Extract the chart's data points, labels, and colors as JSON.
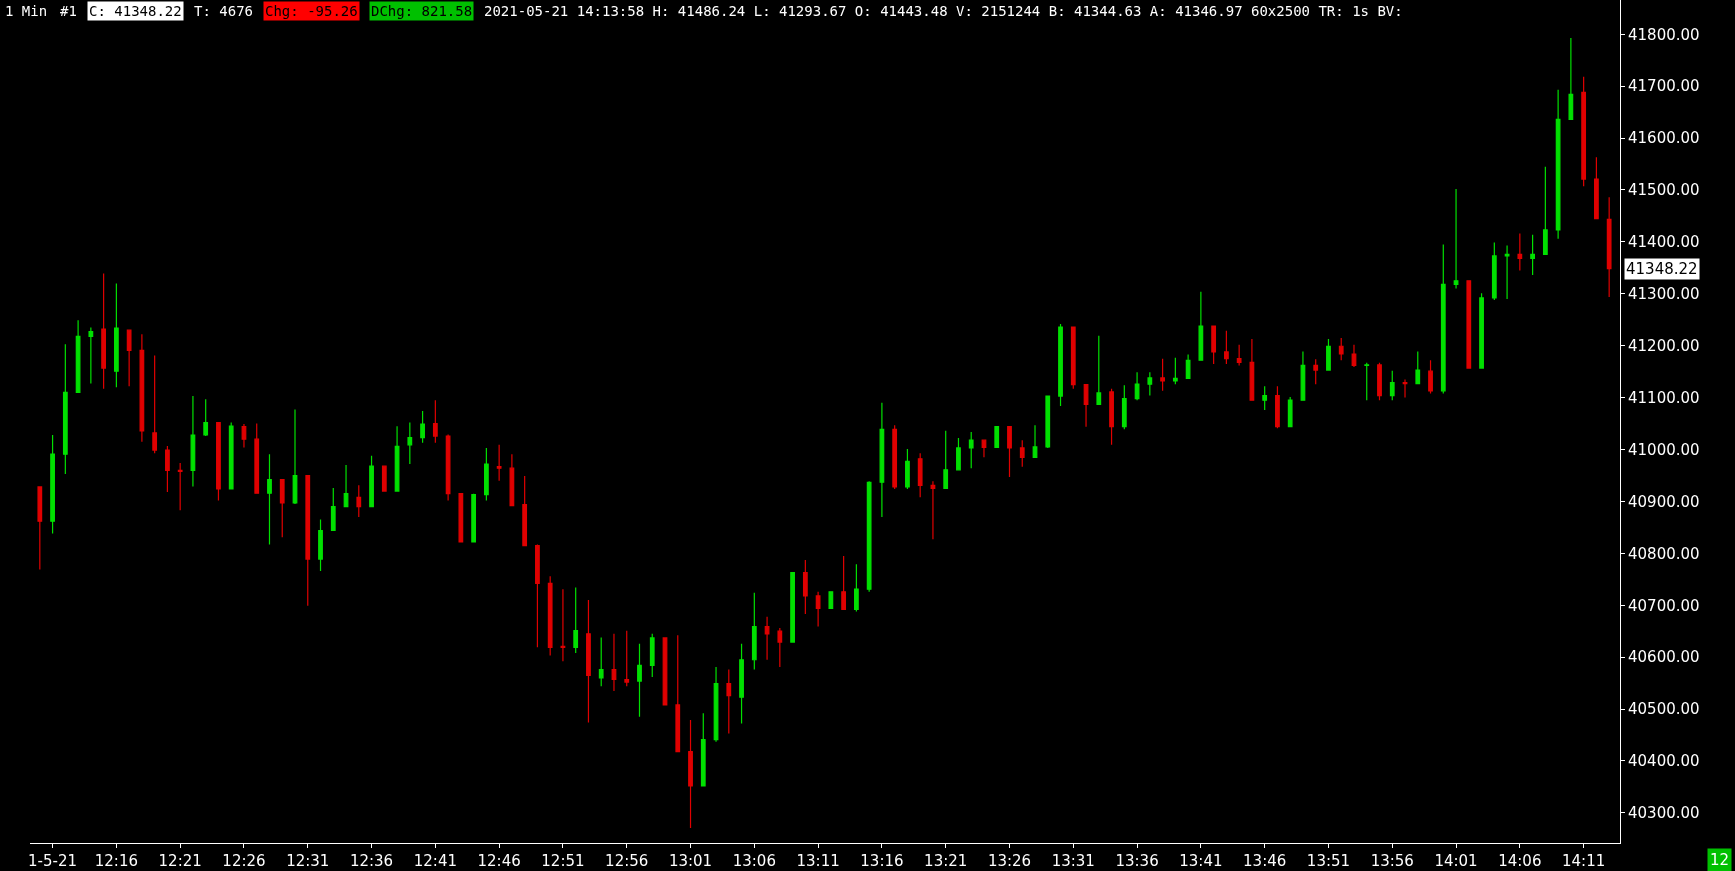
{
  "chart_data": {
    "type": "candlestick",
    "categories": [
      null,
      "1-5-21",
      null,
      null,
      null,
      null,
      "12:16",
      null,
      null,
      null,
      null,
      "12:21",
      null,
      null,
      null,
      null,
      "12:26",
      null,
      null,
      null,
      null,
      "12:31",
      null,
      null,
      null,
      null,
      "12:36",
      null,
      null,
      null,
      null,
      "12:41",
      null,
      null,
      null,
      null,
      "12:46",
      null,
      null,
      null,
      null,
      "12:51",
      null,
      null,
      null,
      null,
      "12:56",
      null,
      null,
      null,
      null,
      "13:01",
      null,
      null,
      null,
      null,
      "13:06",
      null,
      null,
      null,
      null,
      "13:11",
      null,
      null,
      null,
      null,
      "13:16",
      null,
      null,
      null,
      null,
      "13:21",
      null,
      null,
      null,
      null,
      "13:26",
      null,
      null,
      null,
      null,
      "13:31",
      null,
      null,
      null,
      null,
      "13:36",
      null,
      null,
      null,
      null,
      "13:41",
      null,
      null,
      null,
      null,
      "13:46",
      null,
      null,
      null,
      null,
      "13:51",
      null,
      null,
      null,
      null,
      "13:56",
      null,
      null,
      null,
      null,
      "14:01",
      null,
      null,
      null,
      null,
      "14:06",
      null,
      null,
      null,
      null,
      "14:11",
      null,
      null
    ],
    "ohlc": [
      [
        40928,
        40928,
        40769,
        40862
      ],
      [
        40862,
        41028,
        40838,
        40991
      ],
      [
        40991,
        41203,
        40953,
        41110
      ],
      [
        41110,
        41249,
        41110,
        41218
      ],
      [
        41218,
        41235,
        41127,
        41227
      ],
      [
        41232,
        41339,
        41117,
        41157
      ],
      [
        41151,
        41320,
        41120,
        41234
      ],
      [
        41230,
        41230,
        41122,
        41191
      ],
      [
        41191,
        41222,
        41015,
        41036
      ],
      [
        41032,
        41181,
        40993,
        40999
      ],
      [
        40999,
        41007,
        40918,
        40960
      ],
      [
        40960,
        40974,
        40883,
        40958
      ],
      [
        40960,
        41103,
        40929,
        41028
      ],
      [
        41028,
        41097,
        41026,
        41052
      ],
      [
        41052,
        41052,
        40902,
        40924
      ],
      [
        40924,
        41052,
        40924,
        41045
      ],
      [
        41044,
        41049,
        41004,
        41020
      ],
      [
        41020,
        41050,
        40916,
        40916
      ],
      [
        40916,
        40991,
        40817,
        40942
      ],
      [
        40942,
        40942,
        40831,
        40897
      ],
      [
        40897,
        41077,
        40895,
        40950
      ],
      [
        40950,
        40950,
        40699,
        40789
      ],
      [
        40789,
        40865,
        40766,
        40844
      ],
      [
        40844,
        40926,
        40844,
        40890
      ],
      [
        40890,
        40970,
        40890,
        40915
      ],
      [
        40908,
        40931,
        40870,
        40890
      ],
      [
        40890,
        40988,
        40890,
        40968
      ],
      [
        40968,
        40968,
        40919,
        40920
      ],
      [
        40920,
        41045,
        40919,
        41006
      ],
      [
        41009,
        41052,
        40972,
        41023
      ],
      [
        41023,
        41074,
        41013,
        41049
      ],
      [
        41050,
        41095,
        41013,
        41026
      ],
      [
        41026,
        41029,
        40902,
        40915
      ],
      [
        40915,
        40915,
        40821,
        40822
      ],
      [
        40822,
        40915,
        40821,
        40913
      ],
      [
        40913,
        41003,
        40902,
        40972
      ],
      [
        40967,
        41009,
        40940,
        40964
      ],
      [
        40964,
        40991,
        40892,
        40892
      ],
      [
        40894,
        40949,
        40815,
        40815
      ],
      [
        40815,
        40817,
        40619,
        40742
      ],
      [
        40742,
        40756,
        40603,
        40619
      ],
      [
        40621,
        40731,
        40592,
        40619
      ],
      [
        40619,
        40734,
        40608,
        40651
      ],
      [
        40645,
        40710,
        40474,
        40565
      ],
      [
        40560,
        40638,
        40544,
        40576
      ],
      [
        40576,
        40645,
        40535,
        40557
      ],
      [
        40557,
        40651,
        40544,
        40552
      ],
      [
        40554,
        40626,
        40485,
        40584
      ],
      [
        40584,
        40645,
        40562,
        40637
      ],
      [
        40637,
        40637,
        40508,
        40508
      ],
      [
        40508,
        40642,
        40418,
        40418
      ],
      [
        40418,
        40479,
        40271,
        40352
      ],
      [
        40352,
        40492,
        40352,
        40441
      ],
      [
        40441,
        40581,
        40437,
        40549
      ],
      [
        40549,
        40576,
        40453,
        40526
      ],
      [
        40523,
        40626,
        40472,
        40595
      ],
      [
        40595,
        40724,
        40576,
        40659
      ],
      [
        40659,
        40678,
        40595,
        40645
      ],
      [
        40650,
        40656,
        40581,
        40629
      ],
      [
        40629,
        40763,
        40629,
        40763
      ],
      [
        40763,
        40787,
        40683,
        40718
      ],
      [
        40718,
        40726,
        40659,
        40694
      ],
      [
        40694,
        40726,
        40694,
        40726
      ],
      [
        40726,
        40795,
        40692,
        40692
      ],
      [
        40692,
        40779,
        40688,
        40731
      ],
      [
        40731,
        40939,
        40726,
        40937
      ],
      [
        40937,
        41090,
        40870,
        41039
      ],
      [
        41039,
        41047,
        40924,
        40928
      ],
      [
        40928,
        41001,
        40924,
        40977
      ],
      [
        40982,
        40993,
        40908,
        40931
      ],
      [
        40931,
        40939,
        40827,
        40925
      ],
      [
        40925,
        41036,
        40924,
        40961
      ],
      [
        40961,
        41022,
        40961,
        41003
      ],
      [
        41003,
        41034,
        40964,
        41018
      ],
      [
        41018,
        41018,
        40985,
        41004
      ],
      [
        41004,
        41044,
        41004,
        41044
      ],
      [
        41044,
        41044,
        40947,
        41003
      ],
      [
        41003,
        41018,
        40967,
        40985
      ],
      [
        40985,
        41047,
        40985,
        41005
      ],
      [
        41005,
        41103,
        41003,
        41103
      ],
      [
        41103,
        41242,
        41084,
        41236
      ],
      [
        41236,
        41236,
        41117,
        41125
      ],
      [
        41125,
        41125,
        41044,
        41087
      ],
      [
        41087,
        41219,
        41087,
        41109
      ],
      [
        41111,
        41117,
        41009,
        41044
      ],
      [
        41044,
        41124,
        41039,
        41098
      ],
      [
        41098,
        41149,
        41095,
        41126
      ],
      [
        41126,
        41149,
        41104,
        41138
      ],
      [
        41138,
        41175,
        41113,
        41132
      ],
      [
        41132,
        41177,
        41126,
        41137
      ],
      [
        41137,
        41183,
        41137,
        41172
      ],
      [
        41172,
        41304,
        41172,
        41238
      ],
      [
        41238,
        41238,
        41165,
        41188
      ],
      [
        41188,
        41229,
        41165,
        41175
      ],
      [
        41175,
        41202,
        41162,
        41168
      ],
      [
        41168,
        41213,
        41095,
        41095
      ],
      [
        41095,
        41122,
        41076,
        41104
      ],
      [
        41104,
        41122,
        41041,
        41044
      ],
      [
        41044,
        41101,
        41044,
        41095
      ],
      [
        41095,
        41189,
        41095,
        41162
      ],
      [
        41162,
        41174,
        41126,
        41153
      ],
      [
        41153,
        41213,
        41153,
        41199
      ],
      [
        41199,
        41215,
        41172,
        41184
      ],
      [
        41184,
        41202,
        41159,
        41162
      ],
      [
        41162,
        41167,
        41095,
        41163
      ],
      [
        41163,
        41167,
        41095,
        41104
      ],
      [
        41104,
        41152,
        41095,
        41129
      ],
      [
        41129,
        41135,
        41100,
        41127
      ],
      [
        41127,
        41189,
        41127,
        41153
      ],
      [
        41151,
        41172,
        41108,
        41113
      ],
      [
        41113,
        41395,
        41108,
        41318
      ],
      [
        41318,
        41502,
        41310,
        41325
      ],
      [
        41325,
        41325,
        41156,
        41157
      ],
      [
        41157,
        41301,
        41156,
        41292
      ],
      [
        41292,
        41399,
        41288,
        41373
      ],
      [
        41373,
        41393,
        41290,
        41376
      ],
      [
        41376,
        41416,
        41345,
        41368
      ],
      [
        41368,
        41414,
        41336,
        41376
      ],
      [
        41376,
        41545,
        41376,
        41423
      ],
      [
        41423,
        41693,
        41406,
        41636
      ],
      [
        41636,
        41793,
        41636,
        41684
      ],
      [
        41688,
        41718,
        41507,
        41521
      ],
      [
        41521,
        41563,
        41445,
        41445
      ],
      [
        41443.48,
        41486.24,
        41293.67,
        41348.22
      ]
    ],
    "colors": [
      "#e00000",
      "#00e000",
      "#00e000",
      "#00e000",
      "#00e000",
      "#e00000",
      "#00e000",
      "#e00000",
      "#e00000",
      "#e00000",
      "#e00000",
      "#e00000",
      "#00e000",
      "#00e000",
      "#e00000",
      "#00e000",
      "#e00000",
      "#e00000",
      "#00e000",
      "#e00000",
      "#00e000",
      "#e00000",
      "#00e000",
      "#00e000",
      "#00e000",
      "#e00000",
      "#00e000",
      "#e00000",
      "#00e000",
      "#00e000",
      "#00e000",
      "#e00000",
      "#e00000",
      "#e00000",
      "#00e000",
      "#00e000",
      "#e00000",
      "#e00000",
      "#e00000",
      "#e00000",
      "#e00000",
      "#e00000",
      "#00e000",
      "#e00000",
      "#00e000",
      "#e00000",
      "#e00000",
      "#00e000",
      "#00e000",
      "#e00000",
      "#e00000",
      "#e00000",
      "#00e000",
      "#00e000",
      "#e00000",
      "#00e000",
      "#00e000",
      "#e00000",
      "#e00000",
      "#00e000",
      "#e00000",
      "#e00000",
      "#00e000",
      "#e00000",
      "#00e000",
      "#00e000",
      "#00e000",
      "#e00000",
      "#00e000",
      "#e00000",
      "#e00000",
      "#00e000",
      "#00e000",
      "#00e000",
      "#e00000",
      "#00e000",
      "#e00000",
      "#e00000",
      "#00e000",
      "#00e000",
      "#00e000",
      "#e00000",
      "#e00000",
      "#00e000",
      "#e00000",
      "#00e000",
      "#00e000",
      "#00e000",
      "#e00000",
      "#00e000",
      "#00e000",
      "#00e000",
      "#e00000",
      "#e00000",
      "#e00000",
      "#e00000",
      "#00e000",
      "#e00000",
      "#00e000",
      "#00e000",
      "#e00000",
      "#00e000",
      "#e00000",
      "#e00000",
      "#00e000",
      "#e00000",
      "#00e000",
      "#e00000",
      "#00e000",
      "#e00000",
      "#00e000",
      "#00e000",
      "#e00000",
      "#00e000",
      "#00e000",
      "#00e000",
      "#e00000",
      "#00e000",
      "#00e000",
      "#00e000",
      "#00e000",
      "#e00000",
      "#e00000",
      "#e00000"
    ],
    "ylim": [
      40242,
      41866
    ],
    "yticks": [
      {
        "value": 40300,
        "label": "40300.00"
      },
      {
        "value": 40400,
        "label": "40400.00"
      },
      {
        "value": 40500,
        "label": "40500.00"
      },
      {
        "value": 40600,
        "label": "40600.00"
      },
      {
        "value": 40700,
        "label": "40700.00"
      },
      {
        "value": 40800,
        "label": "40800.00"
      },
      {
        "value": 40900,
        "label": "40900.00"
      },
      {
        "value": 41000,
        "label": "41000.00"
      },
      {
        "value": 41100,
        "label": "41100.00"
      },
      {
        "value": 41200,
        "label": "41200.00"
      },
      {
        "value": 41300,
        "label": "41300.00"
      },
      {
        "value": 41400,
        "label": "41400.00"
      },
      {
        "value": 41500,
        "label": "41500.00"
      },
      {
        "value": 41600,
        "label": "41600.00"
      },
      {
        "value": 41700,
        "label": "41700.00"
      },
      {
        "value": 41800,
        "label": "41800.00"
      }
    ],
    "grid": false,
    "annotations": [
      "1 Min",
      "#1",
      "C: 41348.22",
      "T: 4676",
      "Chg: -95.26",
      "DChg: 821.58",
      "2021-05-21 14:13:58 H: 41486.24 L: 41293.67 O: 41443.48 V: 2151244 B: 41344.63 A: 41346.97 60x2500 TR: 1s BV:",
      "12",
      "41348.22"
    ]
  }
}
